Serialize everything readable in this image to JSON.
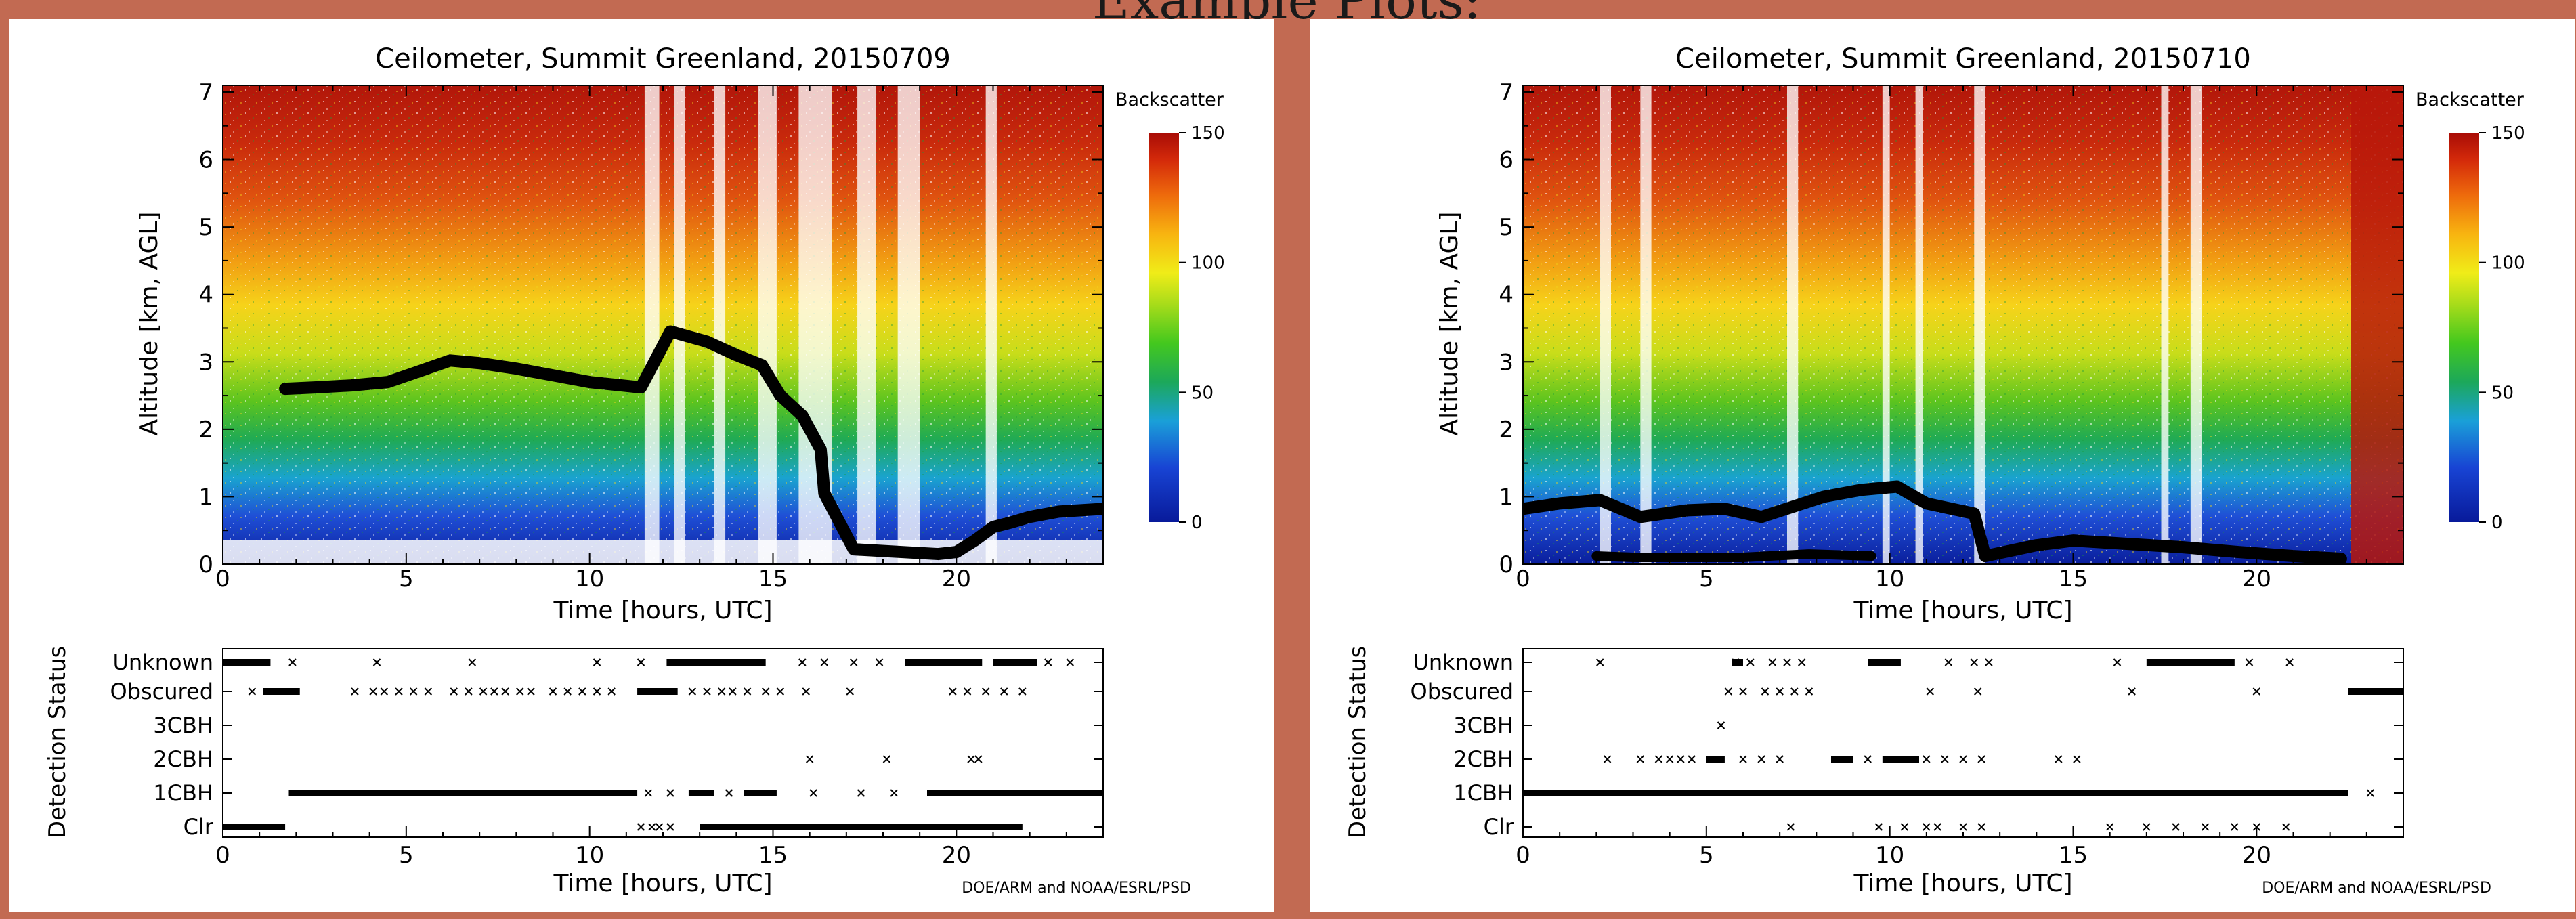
{
  "header": {
    "title": "Example Plots:"
  },
  "chart_data": [
    {
      "type": "heatmap",
      "title": "Ceilometer, Summit Greenland, 20150709",
      "xlabel": "Time [hours, UTC]",
      "ylabel": "Altitude [km, AGL]",
      "xlim": [
        0,
        24
      ],
      "ylim": [
        0,
        7.1
      ],
      "x_ticks": [
        "0",
        "5",
        "10",
        "15",
        "20"
      ],
      "y_ticks": [
        "0",
        "1",
        "2",
        "3",
        "4",
        "5",
        "6",
        "7"
      ],
      "colorbar": {
        "label": "Backscatter",
        "ticks": [
          "0",
          "50",
          "100",
          "150"
        ],
        "range": [
          0,
          150
        ]
      },
      "clear_columns": [
        [
          11.5,
          11.9
        ],
        [
          12.3,
          12.6
        ],
        [
          13.4,
          13.7
        ],
        [
          14.6,
          15.1
        ],
        [
          15.7,
          16.2
        ],
        [
          16.2,
          16.6
        ],
        [
          17.3,
          17.8
        ],
        [
          18.4,
          19.0
        ],
        [
          20.8,
          21.1
        ]
      ],
      "cloud_base_km": [
        [
          1.7,
          2.6
        ],
        [
          2.5,
          2.62
        ],
        [
          3.5,
          2.65
        ],
        [
          4.5,
          2.7
        ],
        [
          5.3,
          2.85
        ],
        [
          6.2,
          3.02
        ],
        [
          7.0,
          2.98
        ],
        [
          8.0,
          2.9
        ],
        [
          9.0,
          2.8
        ],
        [
          10.0,
          2.7
        ],
        [
          11.4,
          2.62
        ],
        [
          12.2,
          3.45
        ],
        [
          13.2,
          3.3
        ],
        [
          14.0,
          3.1
        ],
        [
          14.7,
          2.95
        ],
        [
          15.2,
          2.5
        ],
        [
          15.8,
          2.2
        ],
        [
          16.3,
          1.7
        ],
        [
          16.4,
          1.05
        ],
        [
          17.2,
          0.22
        ],
        [
          18.5,
          0.18
        ],
        [
          19.5,
          0.15
        ],
        [
          20.0,
          0.18
        ],
        [
          20.5,
          0.35
        ],
        [
          21.0,
          0.55
        ],
        [
          21.5,
          0.62
        ],
        [
          22.0,
          0.7
        ],
        [
          22.8,
          0.78
        ],
        [
          24.0,
          0.82
        ]
      ],
      "status": {
        "ylabel": "Detection Status",
        "xlabel": "Time [hours, UTC]",
        "categories": [
          "Clr",
          "1CBH",
          "2CBH",
          "3CBH",
          "Obscured",
          "Unknown"
        ],
        "segments": [
          {
            "cat": "Clr",
            "ranges": [
              [
                0.0,
                1.7
              ],
              [
                13.0,
                21.8
              ]
            ]
          },
          {
            "cat": "1CBH",
            "ranges": [
              [
                1.8,
                11.3
              ],
              [
                12.7,
                13.4
              ],
              [
                14.2,
                15.1
              ],
              [
                19.2,
                24.0
              ]
            ]
          },
          {
            "cat": "Obscured",
            "ranges": [
              [
                1.1,
                2.1
              ],
              [
                11.3,
                12.4
              ]
            ]
          },
          {
            "cat": "Unknown",
            "ranges": [
              [
                0.0,
                1.3
              ],
              [
                12.1,
                14.8
              ],
              [
                18.6,
                20.7
              ],
              [
                21.0,
                22.2
              ]
            ]
          }
        ],
        "points": [
          {
            "cat": "Clr",
            "x": [
              11.4,
              11.7,
              11.9,
              12.2
            ]
          },
          {
            "cat": "1CBH",
            "x": [
              11.6,
              12.2,
              13.8,
              16.1,
              17.4,
              18.3
            ]
          },
          {
            "cat": "2CBH",
            "x": [
              16.0,
              18.1,
              20.4,
              20.6
            ]
          },
          {
            "cat": "Obscured",
            "x": [
              0.8,
              3.6,
              4.1,
              4.4,
              4.8,
              5.2,
              5.6,
              6.3,
              6.7,
              7.1,
              7.4,
              7.7,
              8.1,
              8.4,
              9.0,
              9.4,
              9.8,
              10.2,
              10.6,
              12.8,
              13.2,
              13.6,
              13.9,
              14.3,
              14.8,
              15.2,
              15.9,
              17.1,
              19.9,
              20.3,
              20.8,
              21.3,
              21.8
            ]
          },
          {
            "cat": "Unknown",
            "x": [
              1.9,
              4.2,
              6.8,
              10.2,
              11.4,
              15.8,
              16.4,
              17.2,
              17.9,
              22.5,
              23.1
            ]
          }
        ]
      },
      "footer": "DOE/ARM and NOAA/ESRL/PSD"
    },
    {
      "type": "heatmap",
      "title": "Ceilometer, Summit Greenland, 20150710",
      "xlabel": "Time [hours, UTC]",
      "ylabel": "Altitude [km, AGL]",
      "xlim": [
        0,
        24
      ],
      "ylim": [
        0,
        7.1
      ],
      "x_ticks": [
        "0",
        "5",
        "10",
        "15",
        "20"
      ],
      "y_ticks": [
        "0",
        "1",
        "2",
        "3",
        "4",
        "5",
        "6",
        "7"
      ],
      "colorbar": {
        "label": "Backscatter",
        "ticks": [
          "0",
          "50",
          "100",
          "150"
        ],
        "range": [
          0,
          150
        ]
      },
      "clear_columns": [
        [
          2.1,
          2.4
        ],
        [
          3.2,
          3.5
        ],
        [
          7.2,
          7.5
        ],
        [
          9.8,
          10.0
        ],
        [
          10.7,
          10.9
        ],
        [
          12.3,
          12.6
        ],
        [
          17.4,
          17.6
        ],
        [
          18.2,
          18.5
        ]
      ],
      "cloud_base_km": [
        [
          0.0,
          0.82
        ],
        [
          1.0,
          0.9
        ],
        [
          2.1,
          0.95
        ],
        [
          3.2,
          0.7
        ],
        [
          4.5,
          0.8
        ],
        [
          5.5,
          0.82
        ],
        [
          6.5,
          0.7
        ],
        [
          8.2,
          1.0
        ],
        [
          9.2,
          1.1
        ],
        [
          10.2,
          1.15
        ],
        [
          11.0,
          0.9
        ],
        [
          12.3,
          0.75
        ],
        [
          12.6,
          0.12
        ],
        [
          14.0,
          0.28
        ],
        [
          15.0,
          0.35
        ],
        [
          16.5,
          0.3
        ],
        [
          18.0,
          0.25
        ],
        [
          19.5,
          0.18
        ],
        [
          21.0,
          0.12
        ],
        [
          22.3,
          0.08
        ]
      ],
      "cloud_base_low_km": [
        [
          2.0,
          0.12
        ],
        [
          3.0,
          0.1
        ],
        [
          6.0,
          0.1
        ],
        [
          7.8,
          0.15
        ],
        [
          9.5,
          0.12
        ]
      ],
      "status": {
        "ylabel": "Detection Status",
        "xlabel": "Time [hours, UTC]",
        "categories": [
          "Clr",
          "1CBH",
          "2CBH",
          "3CBH",
          "Obscured",
          "Unknown"
        ],
        "segments": [
          {
            "cat": "1CBH",
            "ranges": [
              [
                0.0,
                22.5
              ]
            ]
          },
          {
            "cat": "2CBH",
            "ranges": [
              [
                5.0,
                5.5
              ],
              [
                8.4,
                9.0
              ],
              [
                9.8,
                10.8
              ]
            ]
          },
          {
            "cat": "Obscured",
            "ranges": [
              [
                22.5,
                24.0
              ]
            ]
          },
          {
            "cat": "Unknown",
            "ranges": [
              [
                5.7,
                6.0
              ],
              [
                9.4,
                10.3
              ],
              [
                17.0,
                19.4
              ]
            ]
          }
        ],
        "points": [
          {
            "cat": "Clr",
            "x": [
              7.3,
              9.7,
              10.4,
              11.0,
              11.3,
              12.0,
              12.5,
              16.0,
              17.0,
              17.8,
              18.6,
              19.4,
              20.0,
              20.8
            ]
          },
          {
            "cat": "1CBH",
            "x": [
              23.1
            ]
          },
          {
            "cat": "2CBH",
            "x": [
              2.3,
              3.2,
              3.7,
              4.0,
              4.3,
              4.6,
              6.0,
              6.5,
              7.0,
              9.4,
              11.0,
              11.5,
              12.0,
              12.5,
              14.6,
              15.1
            ]
          },
          {
            "cat": "3CBH",
            "x": [
              5.4
            ]
          },
          {
            "cat": "Obscured",
            "x": [
              5.6,
              6.0,
              6.6,
              7.0,
              7.4,
              7.8,
              11.1,
              12.4,
              16.6,
              20.0
            ]
          },
          {
            "cat": "Unknown",
            "x": [
              2.1,
              5.8,
              6.2,
              6.8,
              7.2,
              7.6,
              11.6,
              12.3,
              12.7,
              16.2,
              19.8,
              20.9
            ]
          }
        ]
      },
      "footer": "DOE/ARM and NOAA/ESRL/PSD"
    }
  ]
}
